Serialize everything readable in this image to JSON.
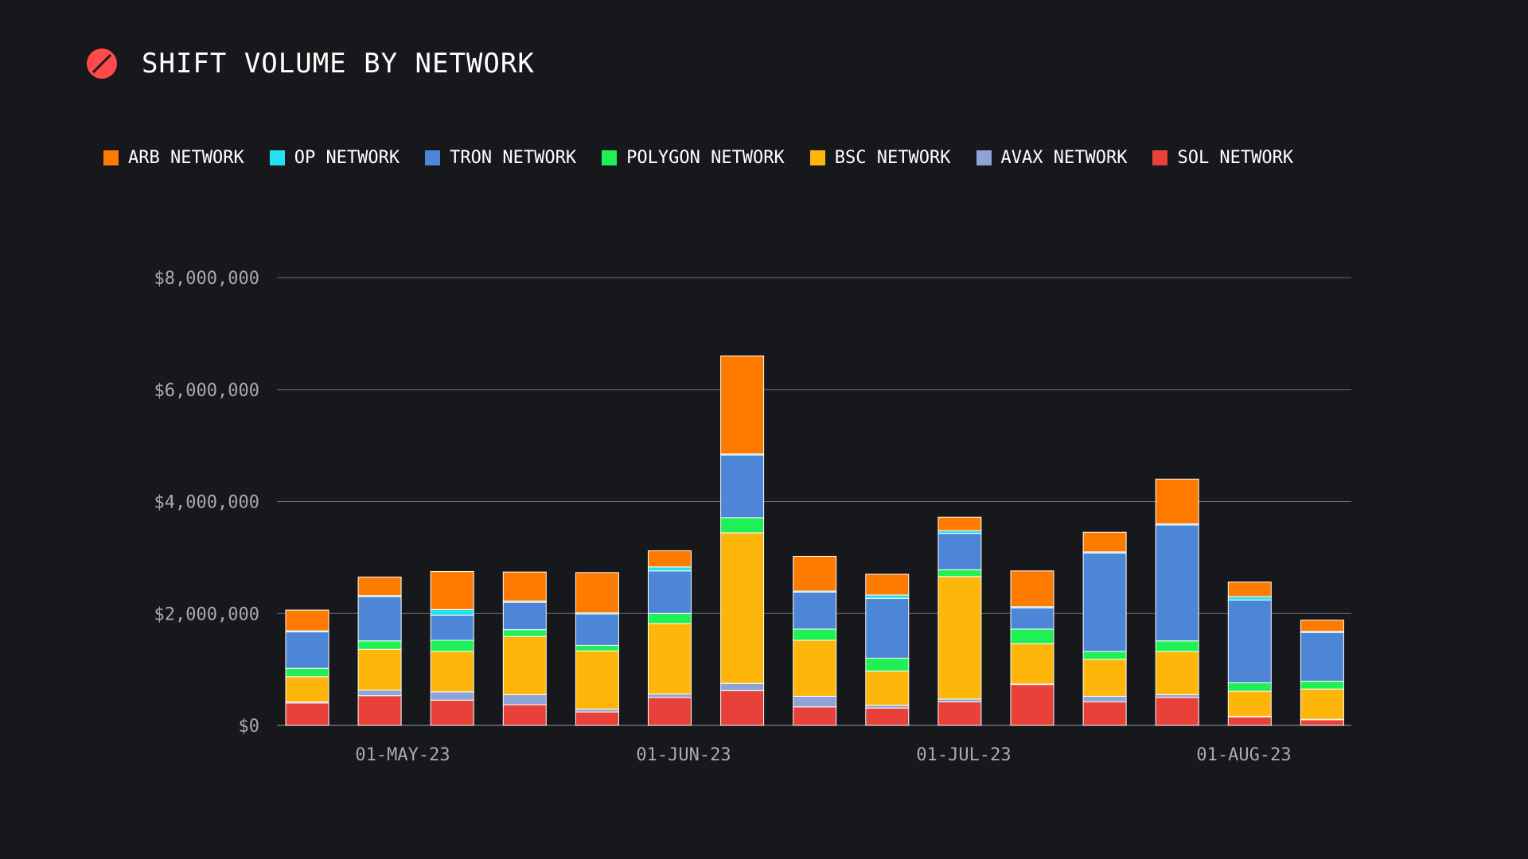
{
  "title": "SHIFT VOLUME BY NETWORK",
  "logo_icon": "slashed-circle-logo",
  "colors": {
    "background": "#17181c",
    "grid": "#6b6e76",
    "logo": "#ff4a4a"
  },
  "chart_data": {
    "type": "bar",
    "stacked": true,
    "title": "SHIFT VOLUME BY NETWORK",
    "categories": [
      "2023-04-17",
      "2023-04-24",
      "2023-05-01",
      "2023-05-08",
      "2023-05-15",
      "2023-05-22",
      "2023-05-29",
      "2023-06-05",
      "2023-06-12",
      "2023-06-19",
      "2023-06-26",
      "2023-07-03",
      "2023-07-10",
      "2023-07-17",
      "2023-07-24",
      "2023-07-31"
    ],
    "x_tick_labels": [
      "01-MAY-23",
      "01-JUN-23",
      "01-JUL-23",
      "01-AUG-23"
    ],
    "y_tick_labels": [
      "$0",
      "$2,000,000",
      "$4,000,000",
      "$6,000,000",
      "$8,000,000"
    ],
    "ylim": [
      0,
      8000000
    ],
    "grid": true,
    "legend_position": "top",
    "series": [
      {
        "name": "SOL NETWORK",
        "color": "#e8413a",
        "values": [
          400000,
          530000,
          450000,
          370000,
          240000,
          500000,
          620000,
          330000,
          310000,
          420000,
          730000,
          420000,
          500000,
          150000,
          100000,
          0
        ]
      },
      {
        "name": "AVAX NETWORK",
        "color": "#8ea3d6",
        "values": [
          20000,
          100000,
          150000,
          180000,
          50000,
          60000,
          130000,
          190000,
          50000,
          50000,
          10000,
          100000,
          50000,
          10000,
          10000,
          0
        ]
      },
      {
        "name": "BSC NETWORK",
        "color": "#ffb60a",
        "values": [
          450000,
          730000,
          720000,
          1040000,
          1040000,
          1260000,
          2690000,
          1000000,
          610000,
          2190000,
          720000,
          660000,
          770000,
          450000,
          540000,
          0
        ]
      },
      {
        "name": "POLYGON NETWORK",
        "color": "#1ff053",
        "values": [
          150000,
          150000,
          200000,
          120000,
          100000,
          180000,
          270000,
          200000,
          230000,
          120000,
          260000,
          140000,
          190000,
          150000,
          140000,
          0
        ]
      },
      {
        "name": "TRON NETWORK",
        "color": "#4d86d6",
        "values": [
          650000,
          790000,
          450000,
          490000,
          560000,
          760000,
          1120000,
          660000,
          1070000,
          650000,
          380000,
          1760000,
          2070000,
          1480000,
          870000,
          0
        ]
      },
      {
        "name": "OP NETWORK",
        "color": "#22e1f0",
        "values": [
          20000,
          20000,
          100000,
          20000,
          20000,
          70000,
          20000,
          20000,
          60000,
          50000,
          20000,
          20000,
          20000,
          60000,
          20000,
          0
        ]
      },
      {
        "name": "ARB NETWORK",
        "color": "#ff7b00",
        "values": [
          370000,
          330000,
          680000,
          520000,
          720000,
          290000,
          1750000,
          620000,
          370000,
          240000,
          640000,
          350000,
          800000,
          260000,
          200000,
          0
        ]
      }
    ]
  }
}
